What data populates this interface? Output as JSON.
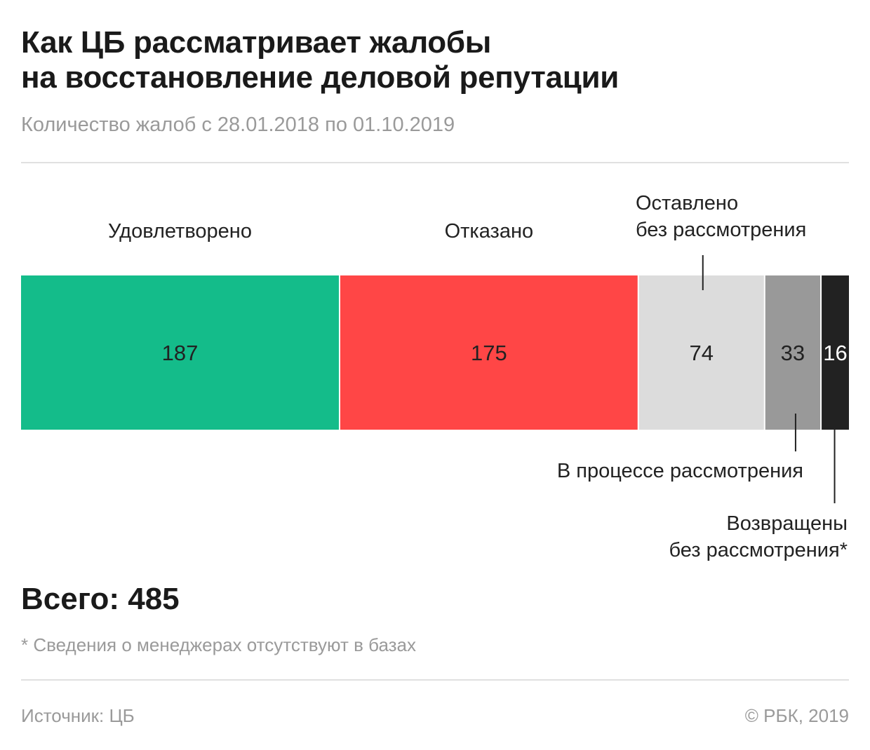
{
  "title_line1": "Как ЦБ рассматривает жалобы",
  "title_line2": "на восстановление деловой репутации",
  "subtitle": "Количество жалоб с 28.01.2018 по 01.10.2019",
  "total_label": "Всего:",
  "total_value": "485",
  "footnote": "* Сведения о менеджерах отсутствуют в базах",
  "source": "Источник: ЦБ",
  "copyright": "© РБК, 2019",
  "chart_data": {
    "type": "bar",
    "orientation": "horizontal-stacked",
    "total": 485,
    "segments": [
      {
        "label": [
          "Удовлетворено"
        ],
        "value": 187,
        "color": "#14bc8a",
        "text_color": "#222222"
      },
      {
        "label": [
          "Отказано"
        ],
        "value": 175,
        "color": "#ff4646",
        "text_color": "#222222"
      },
      {
        "label": [
          "Оставлено",
          "без рассмотрения"
        ],
        "value": 74,
        "color": "#dcdcdc",
        "text_color": "#222222"
      },
      {
        "label": [
          "В процессе рассмотрения"
        ],
        "value": 33,
        "color": "#999999",
        "text_color": "#222222"
      },
      {
        "label": [
          "Возвращены",
          "без рассмотрения*"
        ],
        "value": 16,
        "color": "#222222",
        "text_color": "#ffffff"
      }
    ]
  }
}
